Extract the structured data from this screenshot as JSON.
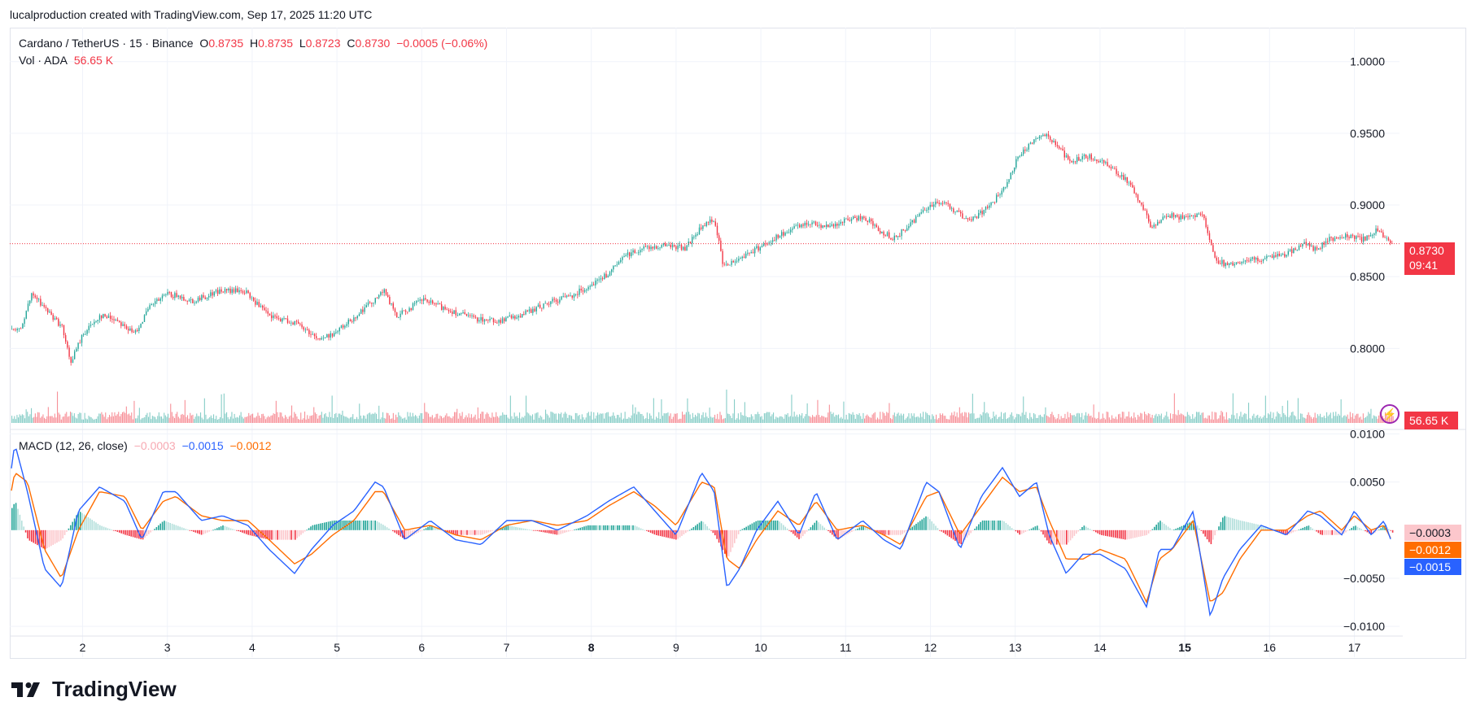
{
  "header": {
    "credit": "lucalproduction created with TradingView.com, Sep 17, 2025 11:20 UTC"
  },
  "legend": {
    "symbol": "Cardano / TetherUS · 15 · Binance",
    "o_label": "O",
    "o_value": "0.8735",
    "h_label": "H",
    "h_value": "0.8735",
    "l_label": "L",
    "l_value": "0.8723",
    "c_label": "C",
    "c_value": "0.8730",
    "change": "−0.0005 (−0.06%)",
    "vol_label": "Vol · ADA",
    "vol_value": "56.65 K"
  },
  "macd_legend": {
    "label": "MACD (12, 26, close)",
    "hist": "−0.0003",
    "macd": "−0.0015",
    "signal": "−0.0012"
  },
  "tags": {
    "price": "0.8730",
    "countdown": "09:41",
    "volume": "56.65 K",
    "hist": "−0.0003",
    "signal": "−0.0012",
    "macd": "−0.0015"
  },
  "colors": {
    "up": "#26a69a",
    "down": "#f23645",
    "macd": "#2962ff",
    "signal": "#ff6d00",
    "hist_down_light": "#fcc7cc",
    "grid": "#f0f3fa"
  },
  "logo": {
    "text": "TradingView"
  },
  "chart_data": [
    {
      "type": "line",
      "title": "Cardano / TetherUS · 15 · Binance",
      "x_ticks": [
        "2",
        "3",
        "4",
        "5",
        "6",
        "7",
        "8",
        "9",
        "10",
        "11",
        "12",
        "13",
        "14",
        "15",
        "16",
        "17"
      ],
      "x_ticks_bold": [
        "8",
        "15"
      ],
      "y_ticks": [
        "1.0000",
        "0.9500",
        "0.9000",
        "0.8500",
        "0.8000"
      ],
      "ylim": [
        0.748,
        1.018
      ],
      "series": [
        {
          "x": [
            1.25,
            1.4,
            1.55,
            1.75,
            1.85,
            2.0,
            2.2,
            2.4,
            2.6,
            2.8,
            3.0,
            3.3,
            3.6,
            3.9,
            4.2,
            4.5,
            4.8,
            5.0,
            5.2,
            5.45,
            5.55,
            5.7,
            6.0,
            6.3,
            6.6,
            6.9,
            7.2,
            7.5,
            7.8,
            8.0,
            8.2,
            8.4,
            8.6,
            8.9,
            9.1,
            9.3,
            9.45,
            9.55,
            9.7,
            9.9,
            10.1,
            10.3,
            10.55,
            10.8,
            11.0,
            11.2,
            11.4,
            11.55,
            11.7,
            11.9,
            12.05,
            12.2,
            12.45,
            12.7,
            12.9,
            13.0,
            13.2,
            13.35,
            13.5,
            13.65,
            13.85,
            14.1,
            14.3,
            14.5,
            14.6,
            14.8,
            15.0,
            15.2,
            15.35,
            15.5,
            15.7,
            16.0,
            16.2,
            16.4,
            16.55,
            16.7,
            16.9,
            17.1,
            17.25,
            17.45
          ],
          "values": [
            0.812,
            0.838,
            0.828,
            0.815,
            0.79,
            0.81,
            0.823,
            0.82,
            0.81,
            0.83,
            0.838,
            0.833,
            0.84,
            0.84,
            0.822,
            0.818,
            0.806,
            0.812,
            0.822,
            0.835,
            0.84,
            0.822,
            0.834,
            0.827,
            0.821,
            0.819,
            0.824,
            0.832,
            0.838,
            0.845,
            0.852,
            0.865,
            0.87,
            0.872,
            0.87,
            0.885,
            0.89,
            0.857,
            0.862,
            0.868,
            0.875,
            0.881,
            0.888,
            0.885,
            0.889,
            0.892,
            0.882,
            0.877,
            0.883,
            0.896,
            0.902,
            0.9,
            0.888,
            0.9,
            0.914,
            0.93,
            0.945,
            0.95,
            0.94,
            0.93,
            0.934,
            0.928,
            0.918,
            0.898,
            0.885,
            0.893,
            0.891,
            0.895,
            0.862,
            0.858,
            0.861,
            0.863,
            0.866,
            0.873,
            0.869,
            0.876,
            0.879,
            0.876,
            0.882,
            0.873
          ]
        }
      ],
      "last_price": 0.873,
      "volume": {
        "label": "Vol · ADA",
        "values": [
          56.65
        ]
      },
      "grid": true
    },
    {
      "type": "line",
      "title": "MACD (12, 26, close)",
      "y_ticks": [
        "0.0100",
        "0.0050",
        "-0.0050",
        "-0.0100"
      ],
      "ylim": [
        -0.0105,
        0.0103
      ],
      "x": [
        1.0,
        1.2,
        1.35,
        1.55,
        1.75,
        1.95,
        2.2,
        2.5,
        2.7,
        2.95,
        3.1,
        3.4,
        3.65,
        3.95,
        4.2,
        4.5,
        4.7,
        4.95,
        5.2,
        5.45,
        5.55,
        5.8,
        6.1,
        6.4,
        6.7,
        7.0,
        7.3,
        7.6,
        7.95,
        8.2,
        8.5,
        8.75,
        9.0,
        9.3,
        9.45,
        9.6,
        9.75,
        9.95,
        10.2,
        10.45,
        10.65,
        10.9,
        11.2,
        11.45,
        11.65,
        11.95,
        12.1,
        12.35,
        12.6,
        12.85,
        13.05,
        13.25,
        13.4,
        13.6,
        13.8,
        14.0,
        14.3,
        14.55,
        14.7,
        14.85,
        15.1,
        15.3,
        15.45,
        15.65,
        15.9,
        16.2,
        16.45,
        16.6,
        16.85,
        17.0,
        17.2,
        17.35,
        17.45
      ],
      "series": [
        {
          "name": "MACD",
          "values": [
            -0.004,
            0.009,
            0.004,
            -0.004,
            -0.006,
            0.002,
            0.0045,
            0.003,
            -0.001,
            0.004,
            0.004,
            0.001,
            0.0015,
            0.0005,
            -0.002,
            -0.0045,
            -0.002,
            0.0005,
            0.002,
            0.005,
            0.0045,
            -0.001,
            0.001,
            -0.001,
            -0.0015,
            0.001,
            0.001,
            0.0,
            0.0015,
            0.003,
            0.0045,
            0.002,
            -0.0005,
            0.006,
            0.004,
            -0.006,
            -0.004,
            0.0,
            0.003,
            -0.0005,
            0.004,
            -0.001,
            0.001,
            -0.001,
            -0.002,
            0.005,
            0.004,
            -0.002,
            0.0035,
            0.0065,
            0.0035,
            0.005,
            -0.0005,
            -0.0045,
            -0.0025,
            -0.0025,
            -0.004,
            -0.008,
            -0.002,
            -0.002,
            0.002,
            -0.009,
            -0.005,
            -0.002,
            0.0005,
            -0.0005,
            0.002,
            0.0015,
            -0.0005,
            0.002,
            -0.0005,
            0.001,
            -0.0015
          ]
        },
        {
          "name": "Signal",
          "values": [
            -0.0035,
            0.006,
            0.005,
            -0.002,
            -0.005,
            0.0,
            0.004,
            0.0035,
            0.0,
            0.003,
            0.0035,
            0.0015,
            0.001,
            0.001,
            -0.001,
            -0.0035,
            -0.0025,
            -0.0005,
            0.001,
            0.004,
            0.004,
            0.0,
            0.0005,
            -0.0005,
            -0.001,
            0.0005,
            0.001,
            0.0005,
            0.001,
            0.0025,
            0.004,
            0.0025,
            0.0005,
            0.005,
            0.0045,
            -0.003,
            -0.004,
            -0.001,
            0.002,
            0.0005,
            0.003,
            0.0,
            0.0005,
            -0.0005,
            -0.0015,
            0.0035,
            0.004,
            -0.0005,
            0.0025,
            0.0055,
            0.004,
            0.0045,
            0.001,
            -0.003,
            -0.003,
            -0.002,
            -0.003,
            -0.0075,
            -0.003,
            -0.002,
            0.001,
            -0.0075,
            -0.0065,
            -0.003,
            0.0,
            0.0,
            0.0015,
            0.002,
            0.0,
            0.0015,
            0.0,
            0.0005,
            -0.0012
          ]
        }
      ],
      "histogram": [
        -0.0003
      ]
    }
  ]
}
